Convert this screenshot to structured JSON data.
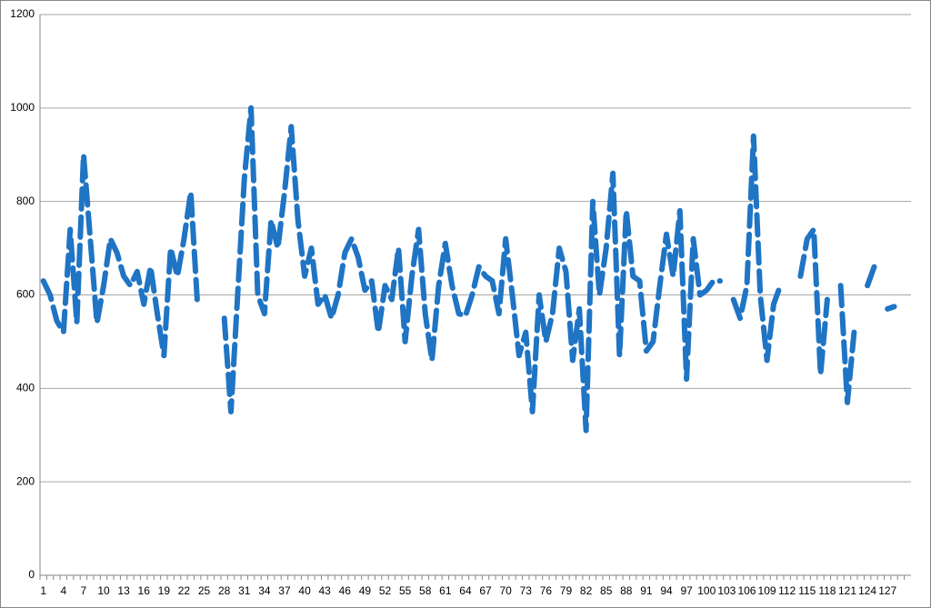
{
  "chart_data": {
    "type": "line",
    "categories": [
      "1",
      null,
      null,
      "4",
      null,
      null,
      "7",
      null,
      null,
      "10",
      null,
      null,
      "13",
      null,
      null,
      "16",
      null,
      null,
      "19",
      null,
      null,
      "22",
      null,
      null,
      "25",
      null,
      null,
      "28",
      null,
      null,
      "31",
      null,
      null,
      "34",
      null,
      null,
      "37",
      null,
      null,
      "40",
      null,
      null,
      "43",
      null,
      null,
      "46",
      null,
      null,
      "49",
      null,
      null,
      "52",
      null,
      null,
      "55",
      null,
      null,
      "58",
      null,
      null,
      "61",
      null,
      null,
      "64",
      null,
      null,
      "67",
      null,
      null,
      "70",
      null,
      null,
      "73",
      null,
      null,
      "76",
      null,
      null,
      "79",
      null,
      null,
      "82",
      null,
      null,
      "85",
      null,
      null,
      "88",
      null,
      null,
      "91",
      null,
      null,
      "94",
      null,
      null,
      "97",
      null,
      null,
      "100",
      null,
      null,
      "103",
      null,
      null,
      "106",
      null,
      null,
      "109",
      null,
      null,
      "112",
      null,
      null,
      "115",
      null,
      null,
      "118",
      null,
      null,
      "121",
      null,
      null,
      "124",
      null,
      null,
      "127",
      null,
      null,
      null
    ],
    "series": [
      {
        "color": "#1f74c4",
        "values": [
          630,
          600,
          545,
          520,
          740,
          540,
          900,
          720,
          540,
          620,
          720,
          690,
          640,
          620,
          650,
          580,
          660,
          560,
          470,
          700,
          640,
          720,
          820,
          580,
          null,
          null,
          null,
          550,
          350,
          600,
          850,
          1000,
          600,
          560,
          760,
          700,
          820,
          960,
          760,
          640,
          700,
          580,
          600,
          550,
          600,
          690,
          720,
          680,
          610,
          630,
          520,
          620,
          590,
          700,
          500,
          640,
          740,
          560,
          460,
          620,
          710,
          620,
          560,
          555,
          600,
          660,
          640,
          630,
          560,
          720,
          600,
          470,
          520,
          350,
          600,
          500,
          560,
          700,
          650,
          460,
          570,
          310,
          800,
          600,
          700,
          860,
          470,
          780,
          640,
          630,
          480,
          500,
          620,
          730,
          640,
          780,
          420,
          720,
          600,
          610,
          630,
          630,
          null,
          590,
          550,
          620,
          940,
          600,
          460,
          580,
          620,
          null,
          null,
          640,
          720,
          740,
          430,
          590,
          null,
          620,
          370,
          520,
          null,
          620,
          660,
          null,
          570,
          575,
          null,
          null
        ]
      }
    ],
    "ylim": [
      0,
      1200
    ],
    "yticks": [
      0,
      200,
      400,
      600,
      800,
      1000,
      1200
    ],
    "grid": true
  }
}
